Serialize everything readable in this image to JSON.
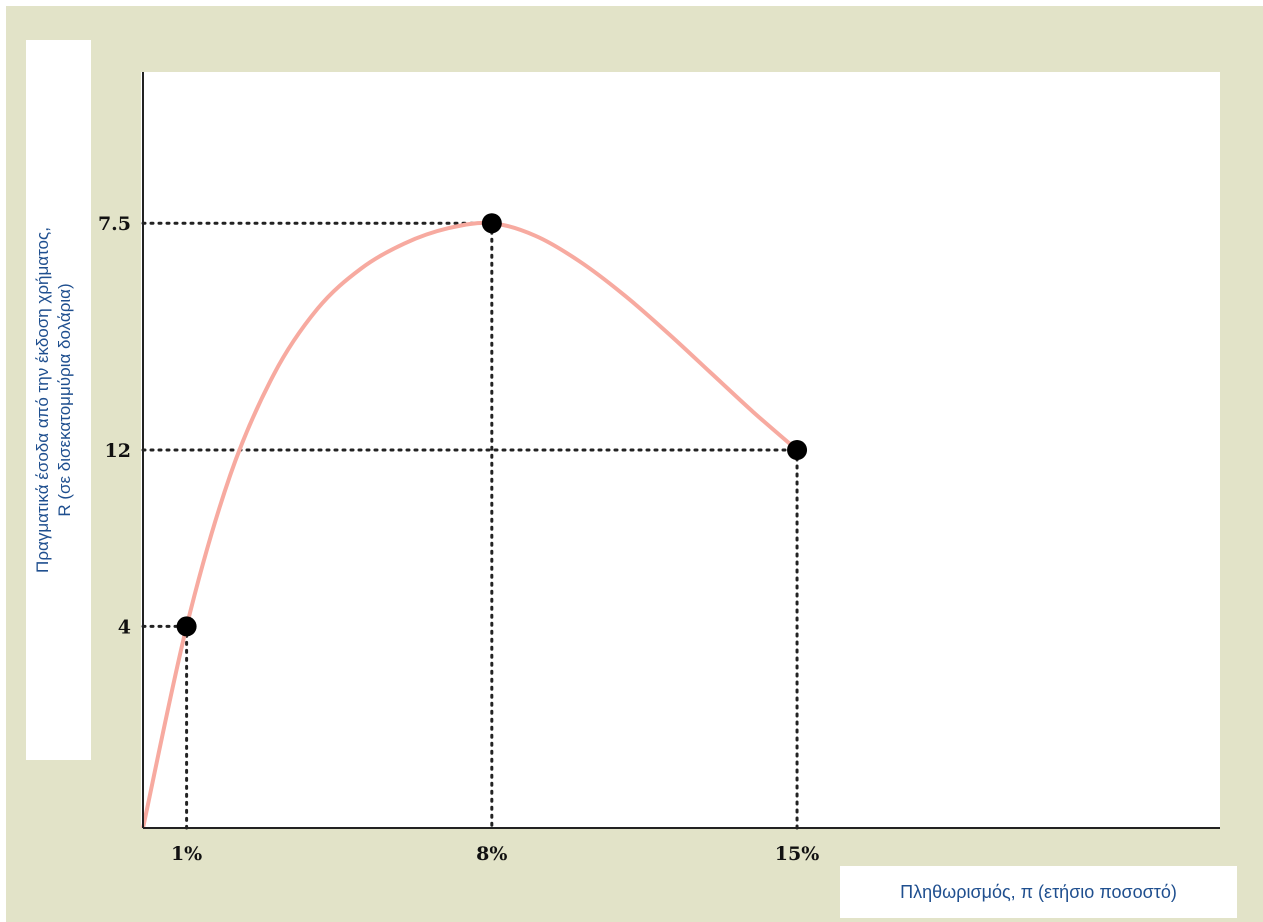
{
  "chart_data": {
    "type": "line",
    "ylabel": "Πραγματικά έσοδα από την έκδοση χρήματος,\nR (σε δισεκατομμύρια δολάρια)",
    "xlabel": "Πληθωρισμός, π (ετήσιο ποσοστό)",
    "x_tick_labels": [
      "1%",
      "8%",
      "15%"
    ],
    "y_tick_labels": [
      "4",
      "7.5",
      "12"
    ],
    "points": [
      {
        "x": 1,
        "y": 4
      },
      {
        "x": 8,
        "y": 12
      },
      {
        "x": 15,
        "y": 7.5
      }
    ],
    "curve": [
      {
        "x": 0,
        "y": 0
      },
      {
        "x": 1,
        "y": 4
      },
      {
        "x": 2,
        "y": 7
      },
      {
        "x": 3,
        "y": 9
      },
      {
        "x": 4,
        "y": 10.3
      },
      {
        "x": 5,
        "y": 11.1
      },
      {
        "x": 6,
        "y": 11.6
      },
      {
        "x": 7,
        "y": 11.9
      },
      {
        "x": 8,
        "y": 12
      },
      {
        "x": 9,
        "y": 11.75
      },
      {
        "x": 10,
        "y": 11.25
      },
      {
        "x": 11,
        "y": 10.6
      },
      {
        "x": 12,
        "y": 9.85
      },
      {
        "x": 13,
        "y": 9.05
      },
      {
        "x": 14,
        "y": 8.25
      },
      {
        "x": 15,
        "y": 7.5
      }
    ],
    "xlim": [
      0,
      24.7
    ],
    "ylim": [
      0,
      15
    ],
    "colors": {
      "curve": "#f7aaa0",
      "points": "#000000",
      "guides": "#222222",
      "axis": "#222222",
      "label_text": "#1f4f8f",
      "background": "#e2e3c8"
    }
  }
}
